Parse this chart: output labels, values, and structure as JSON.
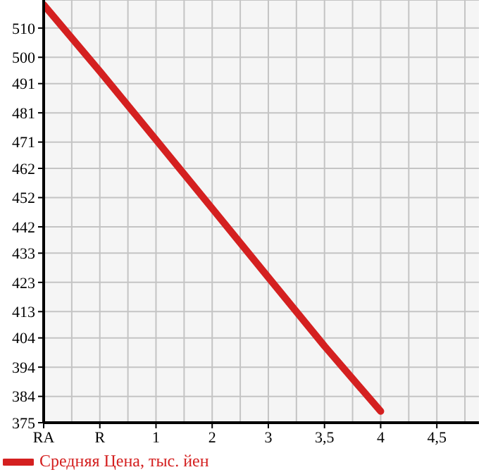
{
  "chart_data": {
    "type": "line",
    "categories": [
      "RA",
      "R",
      "1",
      "2",
      "3",
      "3,5",
      "4",
      "4,5"
    ],
    "series": [
      {
        "name": "Средняя Цена, тыс. йен",
        "color": "#d42020",
        "values": [
          518,
          495.2,
          471.8,
          448.3,
          424.7,
          401.2,
          378.9,
          null
        ]
      }
    ],
    "ylim": [
      375,
      519.6
    ],
    "yticks": [
      375,
      384,
      394,
      404,
      413,
      423,
      433,
      442,
      452,
      462,
      471,
      481,
      491,
      500,
      510
    ],
    "grid": true,
    "legend": "bottom left",
    "marker": "none",
    "line_style": "solid"
  }
}
